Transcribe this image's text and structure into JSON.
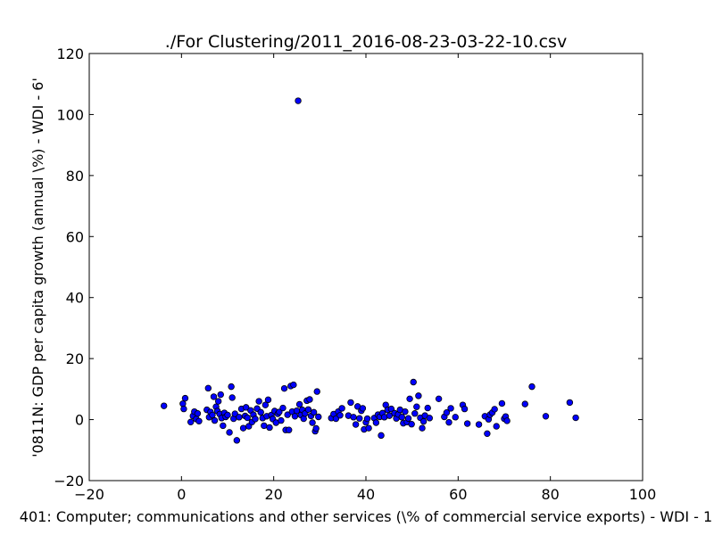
{
  "chart_data": {
    "type": "scatter",
    "title": "./For Clustering/2011_2016-08-23-03-22-10.csv",
    "xlabel": "401: Computer; communications and other services  (\\% of commercial service exports) - WDI - 1",
    "ylabel": "'0811N: GDP per capita growth  (annual \\%) - WDI - 6'",
    "xlim": [
      -20,
      100
    ],
    "ylim": [
      -20,
      120
    ],
    "xticks": [
      "−20",
      "0",
      "20",
      "40",
      "60",
      "80",
      "100"
    ],
    "yticks": [
      "−20",
      "0",
      "20",
      "40",
      "60",
      "80",
      "100",
      "120"
    ],
    "grid": false,
    "marker_color": "#0000ff",
    "points": [
      [
        -3.8,
        4.5
      ],
      [
        0.3,
        5.2
      ],
      [
        0.5,
        3.5
      ],
      [
        0.8,
        7.0
      ],
      [
        2.0,
        -0.8
      ],
      [
        2.5,
        1.2
      ],
      [
        2.8,
        2.6
      ],
      [
        3.2,
        0.2
      ],
      [
        3.5,
        2.0
      ],
      [
        3.8,
        -0.5
      ],
      [
        5.5,
        3.2
      ],
      [
        5.8,
        10.3
      ],
      [
        6.0,
        0.8
      ],
      [
        6.3,
        2.5
      ],
      [
        6.7,
        1.5
      ],
      [
        7.0,
        7.5
      ],
      [
        7.2,
        -0.3
      ],
      [
        7.5,
        4.2
      ],
      [
        7.8,
        2.8
      ],
      [
        8.0,
        6.0
      ],
      [
        8.3,
        1.8
      ],
      [
        8.5,
        8.2
      ],
      [
        8.7,
        0.5
      ],
      [
        9.0,
        -2.0
      ],
      [
        9.3,
        2.2
      ],
      [
        9.6,
        0.9
      ],
      [
        10.0,
        1.5
      ],
      [
        10.4,
        -4.2
      ],
      [
        10.8,
        10.8
      ],
      [
        11.0,
        7.2
      ],
      [
        11.3,
        0.3
      ],
      [
        11.6,
        1.9
      ],
      [
        12.0,
        -6.8
      ],
      [
        12.5,
        0.8
      ],
      [
        13.0,
        3.5
      ],
      [
        13.4,
        -2.8
      ],
      [
        13.8,
        1.2
      ],
      [
        14.0,
        4.0
      ],
      [
        14.3,
        0.6
      ],
      [
        14.6,
        -2.2
      ],
      [
        15.0,
        3.0
      ],
      [
        15.3,
        -0.8
      ],
      [
        15.6,
        1.6
      ],
      [
        16.0,
        0.2
      ],
      [
        16.4,
        3.6
      ],
      [
        16.8,
        6.0
      ],
      [
        17.2,
        2.4
      ],
      [
        17.6,
        0.5
      ],
      [
        17.9,
        -2.0
      ],
      [
        18.2,
        4.8
      ],
      [
        18.5,
        1.1
      ],
      [
        18.8,
        6.5
      ],
      [
        19.1,
        -2.6
      ],
      [
        19.5,
        1.5
      ],
      [
        19.8,
        0.2
      ],
      [
        20.2,
        2.8
      ],
      [
        20.5,
        -1.0
      ],
      [
        20.9,
        1.9
      ],
      [
        21.2,
        2.5
      ],
      [
        21.6,
        -0.3
      ],
      [
        22.0,
        3.8
      ],
      [
        22.3,
        10.2
      ],
      [
        22.6,
        -3.4
      ],
      [
        23.0,
        1.6
      ],
      [
        23.3,
        -3.4
      ],
      [
        23.7,
        11.0
      ],
      [
        24.0,
        2.6
      ],
      [
        24.3,
        11.4
      ],
      [
        24.6,
        1.1
      ],
      [
        25.0,
        2.9
      ],
      [
        25.3,
        104.5
      ],
      [
        25.6,
        5.0
      ],
      [
        25.9,
        1.5
      ],
      [
        26.2,
        3.2
      ],
      [
        26.5,
        0.3
      ],
      [
        26.8,
        2.0
      ],
      [
        27.2,
        6.2
      ],
      [
        27.5,
        3.3
      ],
      [
        27.8,
        6.6
      ],
      [
        28.1,
        1.2
      ],
      [
        28.4,
        -1.0
      ],
      [
        28.7,
        2.4
      ],
      [
        29.0,
        -3.8
      ],
      [
        29.2,
        -2.9
      ],
      [
        29.4,
        9.2
      ],
      [
        29.7,
        0.9
      ],
      [
        32.5,
        0.5
      ],
      [
        33.0,
        1.8
      ],
      [
        33.5,
        0.3
      ],
      [
        34.0,
        2.6
      ],
      [
        34.4,
        1.4
      ],
      [
        34.8,
        3.7
      ],
      [
        36.2,
        1.3
      ],
      [
        36.7,
        5.6
      ],
      [
        37.3,
        0.8
      ],
      [
        37.8,
        -1.6
      ],
      [
        38.2,
        4.3
      ],
      [
        38.6,
        0.4
      ],
      [
        39.0,
        2.9
      ],
      [
        39.3,
        3.7
      ],
      [
        39.6,
        -3.2
      ],
      [
        40.0,
        -0.9
      ],
      [
        40.3,
        0.3
      ],
      [
        40.6,
        -2.8
      ],
      [
        41.8,
        0.5
      ],
      [
        42.2,
        -1.0
      ],
      [
        42.6,
        1.6
      ],
      [
        43.0,
        0.9
      ],
      [
        43.3,
        -5.2
      ],
      [
        43.6,
        2.1
      ],
      [
        44.0,
        0.8
      ],
      [
        44.3,
        4.8
      ],
      [
        44.7,
        3.2
      ],
      [
        45.1,
        1.3
      ],
      [
        45.5,
        3.5
      ],
      [
        46.2,
        2.1
      ],
      [
        46.6,
        0.4
      ],
      [
        47.0,
        1.7
      ],
      [
        47.4,
        3.2
      ],
      [
        47.8,
        0.8
      ],
      [
        48.1,
        -1.2
      ],
      [
        48.5,
        2.6
      ],
      [
        48.9,
        -0.8
      ],
      [
        49.2,
        0.4
      ],
      [
        49.5,
        6.8
      ],
      [
        49.9,
        -1.5
      ],
      [
        50.3,
        12.3
      ],
      [
        50.6,
        2.0
      ],
      [
        51.0,
        4.2
      ],
      [
        51.4,
        7.8
      ],
      [
        51.8,
        0.6
      ],
      [
        52.2,
        -2.8
      ],
      [
        52.5,
        -0.6
      ],
      [
        52.8,
        1.3
      ],
      [
        53.4,
        3.8
      ],
      [
        53.8,
        0.5
      ],
      [
        55.8,
        6.8
      ],
      [
        57.0,
        0.9
      ],
      [
        57.5,
        2.3
      ],
      [
        58.0,
        -0.9
      ],
      [
        58.4,
        3.7
      ],
      [
        59.4,
        0.8
      ],
      [
        61.0,
        4.8
      ],
      [
        61.4,
        3.5
      ],
      [
        62.0,
        -1.3
      ],
      [
        64.5,
        -1.6
      ],
      [
        65.8,
        1.1
      ],
      [
        66.3,
        -4.6
      ],
      [
        66.6,
        0.1
      ],
      [
        66.9,
        1.6
      ],
      [
        67.4,
        2.3
      ],
      [
        67.9,
        3.4
      ],
      [
        68.3,
        -2.2
      ],
      [
        69.5,
        5.3
      ],
      [
        70.0,
        0.3
      ],
      [
        70.3,
        1.0
      ],
      [
        70.6,
        -0.4
      ],
      [
        74.5,
        5.1
      ],
      [
        76.0,
        10.8
      ],
      [
        79.0,
        1.1
      ],
      [
        84.2,
        5.6
      ],
      [
        85.5,
        0.6
      ]
    ]
  }
}
